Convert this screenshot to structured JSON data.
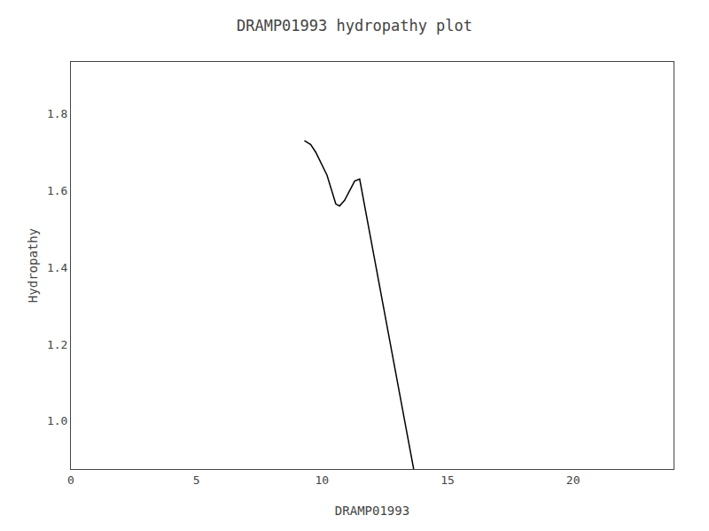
{
  "chart_data": {
    "type": "line",
    "title": "DRAMP01993 hydropathy plot",
    "xlabel": "DRAMP01993",
    "ylabel": "Hydropathy",
    "x": [
      9.3,
      9.55,
      9.75,
      10.0,
      10.2,
      10.55,
      10.7,
      10.9,
      11.05,
      11.3,
      11.5,
      13.65
    ],
    "values": [
      1.73,
      1.72,
      1.7,
      1.665,
      1.64,
      1.565,
      1.56,
      1.575,
      1.595,
      1.625,
      1.63,
      0.875
    ],
    "color": "#000000",
    "xlim": [
      0,
      24
    ],
    "xticks": [
      0,
      5,
      10,
      15,
      20
    ],
    "ylim": [
      0.875,
      1.935
    ],
    "yticks": [
      {
        "value": 1.0,
        "label": "1.0"
      },
      1.2,
      1.4,
      1.6,
      1.8
    ],
    "grid": false
  }
}
